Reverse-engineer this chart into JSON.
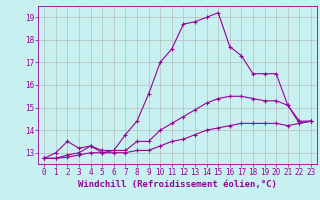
{
  "xlabel": "Windchill (Refroidissement éolien,°C)",
  "ylabel": "",
  "background_color": "#c8f0f0",
  "line_color": "#990099",
  "grid_color": "#b0b0b0",
  "xlim": [
    -0.5,
    23.5
  ],
  "ylim": [
    12.5,
    19.5
  ],
  "yticks": [
    13,
    14,
    15,
    16,
    17,
    18,
    19
  ],
  "xticks": [
    0,
    1,
    2,
    3,
    4,
    5,
    6,
    7,
    8,
    9,
    10,
    11,
    12,
    13,
    14,
    15,
    16,
    17,
    18,
    19,
    20,
    21,
    22,
    23
  ],
  "curve1_x": [
    0,
    1,
    2,
    3,
    4,
    5,
    6,
    7,
    8,
    9,
    10,
    11,
    12,
    13,
    14,
    15,
    16,
    17,
    18,
    19,
    20,
    21,
    22,
    23
  ],
  "curve1_y": [
    12.75,
    13.0,
    13.5,
    13.2,
    13.3,
    13.1,
    13.1,
    13.8,
    14.4,
    15.6,
    17.0,
    17.6,
    18.7,
    18.8,
    19.0,
    19.2,
    17.7,
    17.3,
    16.5,
    16.5,
    16.5,
    15.1,
    14.3,
    14.4
  ],
  "curve2_x": [
    0,
    1,
    2,
    3,
    4,
    5,
    6,
    7,
    8,
    9,
    10,
    11,
    12,
    13,
    14,
    15,
    16,
    17,
    18,
    19,
    20,
    21,
    22,
    23
  ],
  "curve2_y": [
    12.75,
    12.75,
    12.9,
    13.0,
    13.3,
    13.0,
    13.1,
    13.1,
    13.5,
    13.5,
    14.0,
    14.3,
    14.6,
    14.9,
    15.2,
    15.4,
    15.5,
    15.5,
    15.4,
    15.3,
    15.3,
    15.1,
    14.4,
    14.4
  ],
  "curve3_x": [
    0,
    1,
    2,
    3,
    4,
    5,
    6,
    7,
    8,
    9,
    10,
    11,
    12,
    13,
    14,
    15,
    16,
    17,
    18,
    19,
    20,
    21,
    22,
    23
  ],
  "curve3_y": [
    12.75,
    12.75,
    12.8,
    12.9,
    13.0,
    13.0,
    13.0,
    13.0,
    13.1,
    13.1,
    13.3,
    13.5,
    13.6,
    13.8,
    14.0,
    14.1,
    14.2,
    14.3,
    14.3,
    14.3,
    14.3,
    14.2,
    14.3,
    14.4
  ],
  "marker": "+",
  "markersize": 3,
  "linewidth": 0.8,
  "tick_fontsize": 5.5,
  "xlabel_fontsize": 6.5
}
